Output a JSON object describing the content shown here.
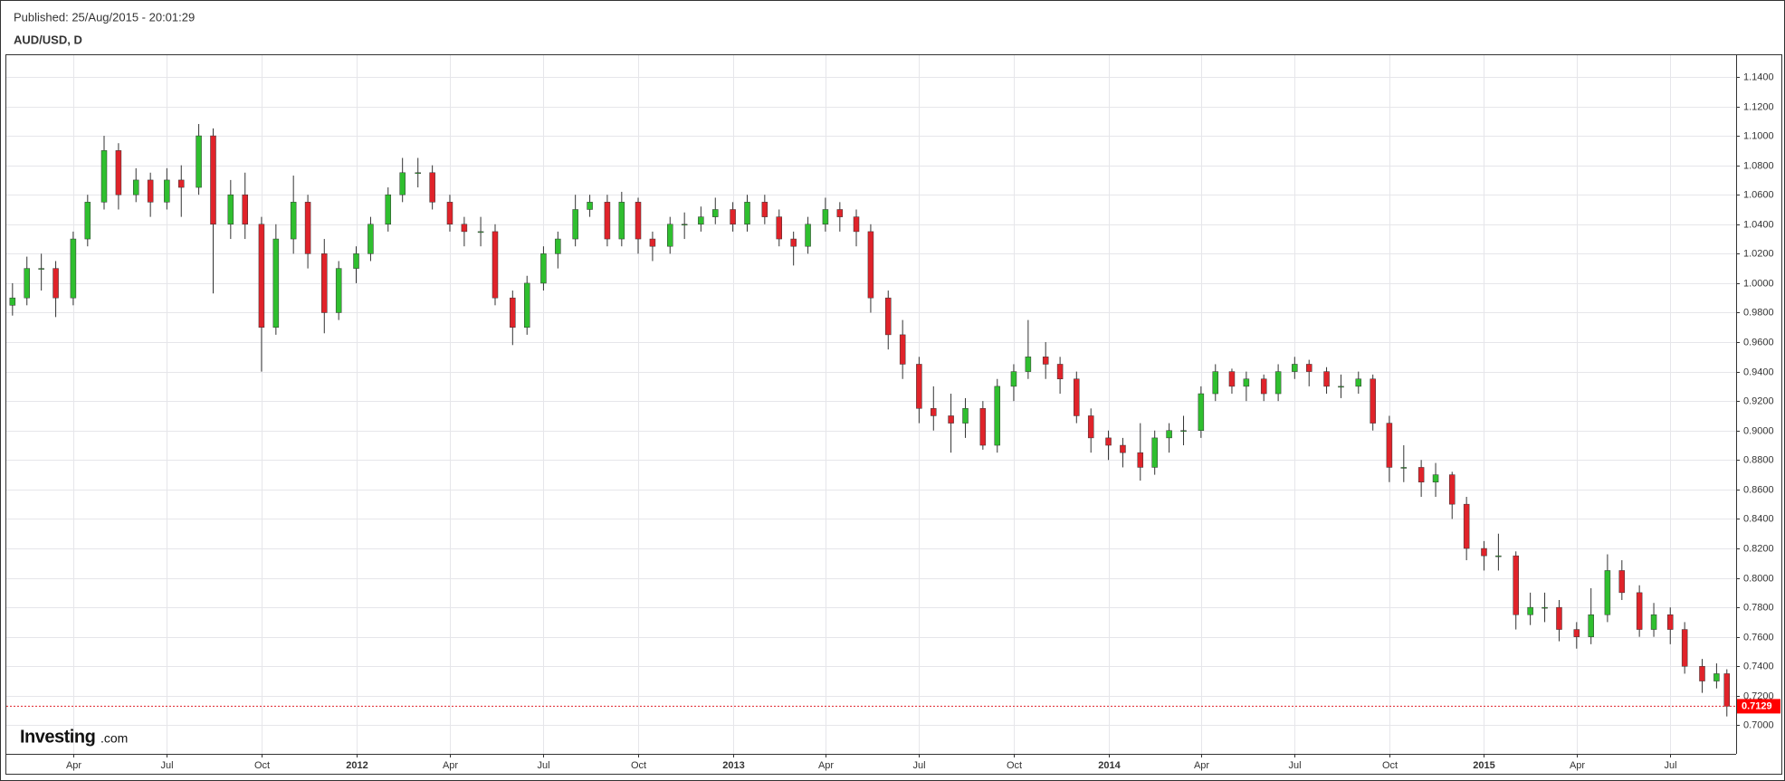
{
  "header": {
    "published": "Published: 25/Aug/2015 - 20:01:29",
    "symbol": "AUD/USD, D"
  },
  "logo": [
    "Investing",
    ".com"
  ],
  "chart_data": {
    "type": "candlestick",
    "up_color": "#2fbf2f",
    "down_color": "#e0232a",
    "wick_color": "#333333",
    "grid": true,
    "xlim": [
      "2011-01-26",
      "2015-09-03"
    ],
    "ylim": [
      0.6806,
      1.1547
    ],
    "last_price": 0.7129,
    "xticks": [
      {
        "value": "2011-04-01",
        "label": "Apr"
      },
      {
        "value": "2011-07-01",
        "label": "Jul"
      },
      {
        "value": "2011-10-01",
        "label": "Oct"
      },
      {
        "value": "2012-01-01",
        "label": "2012"
      },
      {
        "value": "2012-04-01",
        "label": "Apr"
      },
      {
        "value": "2012-07-01",
        "label": "Jul"
      },
      {
        "value": "2012-10-01",
        "label": "Oct"
      },
      {
        "value": "2013-01-01",
        "label": "2013"
      },
      {
        "value": "2013-04-01",
        "label": "Apr"
      },
      {
        "value": "2013-07-01",
        "label": "Jul"
      },
      {
        "value": "2013-10-01",
        "label": "Oct"
      },
      {
        "value": "2014-01-01",
        "label": "2014"
      },
      {
        "value": "2014-04-01",
        "label": "Apr"
      },
      {
        "value": "2014-07-01",
        "label": "Jul"
      },
      {
        "value": "2014-10-01",
        "label": "Oct"
      },
      {
        "value": "2015-01-01",
        "label": "2015"
      },
      {
        "value": "2015-04-01",
        "label": "Apr"
      },
      {
        "value": "2015-07-01",
        "label": "Jul"
      }
    ],
    "yticks": [
      {
        "value": 0.7,
        "label": "0.7000"
      },
      {
        "value": 0.72,
        "label": "0.7200"
      },
      {
        "value": 0.74,
        "label": "0.7400"
      },
      {
        "value": 0.76,
        "label": "0.7600"
      },
      {
        "value": 0.78,
        "label": "0.7800"
      },
      {
        "value": 0.8,
        "label": "0.8000"
      },
      {
        "value": 0.82,
        "label": "0.8200"
      },
      {
        "value": 0.84,
        "label": "0.8400"
      },
      {
        "value": 0.86,
        "label": "0.8600"
      },
      {
        "value": 0.88,
        "label": "0.8800"
      },
      {
        "value": 0.9,
        "label": "0.9000"
      },
      {
        "value": 0.92,
        "label": "0.9200"
      },
      {
        "value": 0.94,
        "label": "0.9400"
      },
      {
        "value": 0.96,
        "label": "0.9600"
      },
      {
        "value": 0.98,
        "label": "0.9800"
      },
      {
        "value": 1.0,
        "label": "1.0000"
      },
      {
        "value": 1.02,
        "label": "1.0200"
      },
      {
        "value": 1.04,
        "label": "1.0400"
      },
      {
        "value": 1.06,
        "label": "1.0600"
      },
      {
        "value": 1.08,
        "label": "1.0800"
      },
      {
        "value": 1.1,
        "label": "1.1000"
      },
      {
        "value": 1.12,
        "label": "1.1200"
      },
      {
        "value": 1.14,
        "label": "1.1400"
      }
    ],
    "x": [
      "2011-02-01",
      "2011-02-15",
      "2011-03-01",
      "2011-03-15",
      "2011-04-01",
      "2011-04-15",
      "2011-05-01",
      "2011-05-15",
      "2011-06-01",
      "2011-06-15",
      "2011-07-01",
      "2011-07-15",
      "2011-08-01",
      "2011-08-15",
      "2011-09-01",
      "2011-09-15",
      "2011-10-01",
      "2011-10-15",
      "2011-11-01",
      "2011-11-15",
      "2011-12-01",
      "2011-12-15",
      "2012-01-01",
      "2012-01-15",
      "2012-02-01",
      "2012-02-15",
      "2012-03-01",
      "2012-03-15",
      "2012-04-01",
      "2012-04-15",
      "2012-05-01",
      "2012-05-15",
      "2012-06-01",
      "2012-06-15",
      "2012-07-01",
      "2012-07-15",
      "2012-08-01",
      "2012-08-15",
      "2012-09-01",
      "2012-09-15",
      "2012-10-01",
      "2012-10-15",
      "2012-11-01",
      "2012-11-15",
      "2012-12-01",
      "2012-12-15",
      "2013-01-01",
      "2013-01-15",
      "2013-02-01",
      "2013-02-15",
      "2013-03-01",
      "2013-03-15",
      "2013-04-01",
      "2013-04-15",
      "2013-05-01",
      "2013-05-15",
      "2013-06-01",
      "2013-06-15",
      "2013-07-01",
      "2013-07-15",
      "2013-08-01",
      "2013-08-15",
      "2013-09-01",
      "2013-09-15",
      "2013-10-01",
      "2013-10-15",
      "2013-11-01",
      "2013-11-15",
      "2013-12-01",
      "2013-12-15",
      "2014-01-01",
      "2014-01-15",
      "2014-02-01",
      "2014-02-15",
      "2014-03-01",
      "2014-03-15",
      "2014-04-01",
      "2014-04-15",
      "2014-05-01",
      "2014-05-15",
      "2014-06-01",
      "2014-06-15",
      "2014-07-01",
      "2014-07-15",
      "2014-08-01",
      "2014-08-15",
      "2014-09-01",
      "2014-09-15",
      "2014-10-01",
      "2014-10-15",
      "2014-11-01",
      "2014-11-15",
      "2014-12-01",
      "2014-12-15",
      "2015-01-01",
      "2015-01-15",
      "2015-02-01",
      "2015-02-15",
      "2015-03-01",
      "2015-03-15",
      "2015-04-01",
      "2015-04-15",
      "2015-05-01",
      "2015-05-15",
      "2015-06-01",
      "2015-06-15",
      "2015-07-01",
      "2015-07-15",
      "2015-08-01",
      "2015-08-15",
      "2015-08-25"
    ],
    "open": [
      0.985,
      0.99,
      1.01,
      1.01,
      0.99,
      1.03,
      1.055,
      1.09,
      1.06,
      1.07,
      1.055,
      1.07,
      1.065,
      1.1,
      1.04,
      1.06,
      1.04,
      0.97,
      1.03,
      1.055,
      1.02,
      0.98,
      1.01,
      1.02,
      1.04,
      1.06,
      1.075,
      1.075,
      1.055,
      1.04,
      1.035,
      1.035,
      0.99,
      0.97,
      1.0,
      1.02,
      1.03,
      1.05,
      1.055,
      1.03,
      1.055,
      1.03,
      1.025,
      1.04,
      1.04,
      1.045,
      1.05,
      1.04,
      1.055,
      1.045,
      1.03,
      1.025,
      1.04,
      1.05,
      1.045,
      1.035,
      0.99,
      0.965,
      0.945,
      0.915,
      0.91,
      0.905,
      0.915,
      0.89,
      0.93,
      0.94,
      0.95,
      0.945,
      0.935,
      0.91,
      0.895,
      0.89,
      0.885,
      0.875,
      0.895,
      0.9,
      0.9,
      0.925,
      0.94,
      0.93,
      0.935,
      0.925,
      0.94,
      0.945,
      0.94,
      0.93,
      0.93,
      0.935,
      0.905,
      0.875,
      0.875,
      0.865,
      0.87,
      0.85,
      0.82,
      0.815,
      0.815,
      0.775,
      0.78,
      0.78,
      0.765,
      0.76,
      0.775,
      0.805,
      0.79,
      0.765,
      0.775,
      0.765,
      0.74,
      0.73,
      0.735
    ],
    "high": [
      1.0,
      1.018,
      1.02,
      1.015,
      1.035,
      1.06,
      1.1,
      1.095,
      1.078,
      1.075,
      1.078,
      1.08,
      1.108,
      1.105,
      1.07,
      1.075,
      1.045,
      1.04,
      1.073,
      1.06,
      1.03,
      1.015,
      1.025,
      1.045,
      1.065,
      1.085,
      1.085,
      1.08,
      1.06,
      1.045,
      1.045,
      1.04,
      0.995,
      1.005,
      1.025,
      1.035,
      1.06,
      1.06,
      1.06,
      1.062,
      1.058,
      1.035,
      1.045,
      1.048,
      1.052,
      1.058,
      1.055,
      1.06,
      1.06,
      1.05,
      1.035,
      1.045,
      1.058,
      1.055,
      1.05,
      1.04,
      0.995,
      0.975,
      0.95,
      0.93,
      0.925,
      0.922,
      0.92,
      0.935,
      0.945,
      0.975,
      0.96,
      0.95,
      0.94,
      0.915,
      0.9,
      0.895,
      0.905,
      0.9,
      0.905,
      0.91,
      0.93,
      0.945,
      0.942,
      0.94,
      0.938,
      0.945,
      0.95,
      0.948,
      0.943,
      0.938,
      0.94,
      0.938,
      0.91,
      0.89,
      0.88,
      0.878,
      0.872,
      0.855,
      0.825,
      0.83,
      0.818,
      0.79,
      0.79,
      0.785,
      0.77,
      0.793,
      0.816,
      0.812,
      0.795,
      0.783,
      0.78,
      0.77,
      0.745,
      0.742,
      0.738
    ],
    "low": [
      0.978,
      0.985,
      0.995,
      0.977,
      0.985,
      1.025,
      1.05,
      1.05,
      1.055,
      1.045,
      1.05,
      1.045,
      1.06,
      0.993,
      1.03,
      1.03,
      0.94,
      0.965,
      1.02,
      1.01,
      0.966,
      0.975,
      1.0,
      1.015,
      1.035,
      1.055,
      1.065,
      1.05,
      1.035,
      1.025,
      1.025,
      0.985,
      0.958,
      0.965,
      0.995,
      1.01,
      1.025,
      1.045,
      1.025,
      1.025,
      1.02,
      1.015,
      1.02,
      1.03,
      1.035,
      1.04,
      1.035,
      1.035,
      1.04,
      1.025,
      1.012,
      1.02,
      1.035,
      1.035,
      1.025,
      0.98,
      0.955,
      0.935,
      0.905,
      0.9,
      0.885,
      0.895,
      0.887,
      0.885,
      0.92,
      0.935,
      0.935,
      0.925,
      0.905,
      0.885,
      0.88,
      0.875,
      0.866,
      0.87,
      0.885,
      0.89,
      0.895,
      0.92,
      0.925,
      0.92,
      0.92,
      0.92,
      0.935,
      0.93,
      0.925,
      0.922,
      0.925,
      0.9,
      0.865,
      0.865,
      0.855,
      0.855,
      0.84,
      0.812,
      0.805,
      0.805,
      0.765,
      0.768,
      0.77,
      0.757,
      0.752,
      0.755,
      0.77,
      0.785,
      0.76,
      0.76,
      0.755,
      0.735,
      0.722,
      0.725,
      0.706
    ],
    "close": [
      0.99,
      1.01,
      1.01,
      0.99,
      1.03,
      1.055,
      1.09,
      1.06,
      1.07,
      1.055,
      1.07,
      1.065,
      1.1,
      1.04,
      1.06,
      1.04,
      0.97,
      1.03,
      1.055,
      1.02,
      0.98,
      1.01,
      1.02,
      1.04,
      1.06,
      1.075,
      1.075,
      1.055,
      1.04,
      1.035,
      1.035,
      0.99,
      0.97,
      1.0,
      1.02,
      1.03,
      1.05,
      1.055,
      1.03,
      1.055,
      1.03,
      1.025,
      1.04,
      1.04,
      1.045,
      1.05,
      1.04,
      1.055,
      1.045,
      1.03,
      1.025,
      1.04,
      1.05,
      1.045,
      1.035,
      0.99,
      0.965,
      0.945,
      0.915,
      0.91,
      0.905,
      0.915,
      0.89,
      0.93,
      0.94,
      0.95,
      0.945,
      0.935,
      0.91,
      0.895,
      0.89,
      0.885,
      0.875,
      0.895,
      0.9,
      0.9,
      0.925,
      0.94,
      0.93,
      0.935,
      0.925,
      0.94,
      0.945,
      0.94,
      0.93,
      0.93,
      0.935,
      0.905,
      0.875,
      0.875,
      0.865,
      0.87,
      0.85,
      0.82,
      0.815,
      0.815,
      0.775,
      0.78,
      0.78,
      0.765,
      0.76,
      0.775,
      0.805,
      0.79,
      0.765,
      0.775,
      0.765,
      0.74,
      0.73,
      0.735,
      0.7129
    ]
  }
}
